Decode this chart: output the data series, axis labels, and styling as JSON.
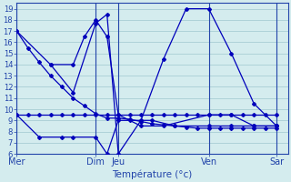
{
  "background_color": "#d4ecee",
  "grid_color": "#a8cdd4",
  "line_color": "#0000bb",
  "title": "Température (°c)",
  "x_ticks_labels": [
    "Mer",
    "Dim",
    "Jeu",
    "Ven",
    "Sar"
  ],
  "x_ticks_pos": [
    0,
    7,
    9,
    17,
    23
  ],
  "xlim": [
    0,
    24
  ],
  "ylim": [
    6,
    19.5
  ],
  "yticks": [
    6,
    7,
    8,
    9,
    10,
    11,
    12,
    13,
    14,
    15,
    16,
    17,
    18,
    19
  ],
  "vlines": [
    0,
    7,
    9,
    17,
    23
  ],
  "series": [
    {
      "x": [
        0,
        1,
        2,
        3,
        4,
        5,
        6,
        7,
        8,
        9,
        10,
        11,
        12,
        13,
        14,
        15,
        16,
        17,
        18,
        19,
        20,
        21,
        22,
        23
      ],
      "y": [
        17,
        15.5,
        14.2,
        13.0,
        12.0,
        11.0,
        10.3,
        9.6,
        9.2,
        9.2,
        9.1,
        8.9,
        8.7,
        8.6,
        8.5,
        8.4,
        8.3,
        8.3,
        8.3,
        8.3,
        8.3,
        8.3,
        8.3,
        8.3
      ]
    },
    {
      "x": [
        0,
        1,
        2,
        3,
        4,
        5,
        6,
        7,
        8,
        9,
        10,
        11,
        12,
        13,
        14,
        15,
        16,
        17,
        18,
        19,
        20,
        21,
        22,
        23
      ],
      "y": [
        9.5,
        9.5,
        9.5,
        9.5,
        9.5,
        9.5,
        9.5,
        9.5,
        9.5,
        9.5,
        9.5,
        9.5,
        9.5,
        9.5,
        9.5,
        9.5,
        9.5,
        9.5,
        9.5,
        9.5,
        9.5,
        9.5,
        9.5,
        9.5
      ]
    },
    {
      "x": [
        0,
        3,
        5,
        7,
        8,
        9,
        11,
        13,
        15,
        17,
        19,
        21,
        23
      ],
      "y": [
        17,
        14.0,
        11.5,
        17.7,
        18.5,
        6.0,
        9.0,
        14.5,
        19.0,
        19.0,
        15.0,
        10.5,
        8.5
      ]
    },
    {
      "x": [
        0,
        2,
        4,
        5,
        7,
        8,
        9,
        10,
        12,
        14,
        17,
        19,
        21,
        23
      ],
      "y": [
        9.5,
        7.5,
        7.5,
        7.5,
        7.5,
        6.0,
        9.0,
        9.0,
        9.0,
        8.5,
        8.5,
        8.5,
        8.5,
        8.5
      ]
    },
    {
      "x": [
        3,
        5,
        6,
        7,
        8,
        9,
        11,
        13,
        17,
        19,
        21,
        23
      ],
      "y": [
        14.0,
        14.0,
        16.5,
        18.0,
        16.5,
        9.5,
        8.5,
        8.5,
        9.5,
        9.5,
        8.5,
        8.5
      ]
    }
  ]
}
